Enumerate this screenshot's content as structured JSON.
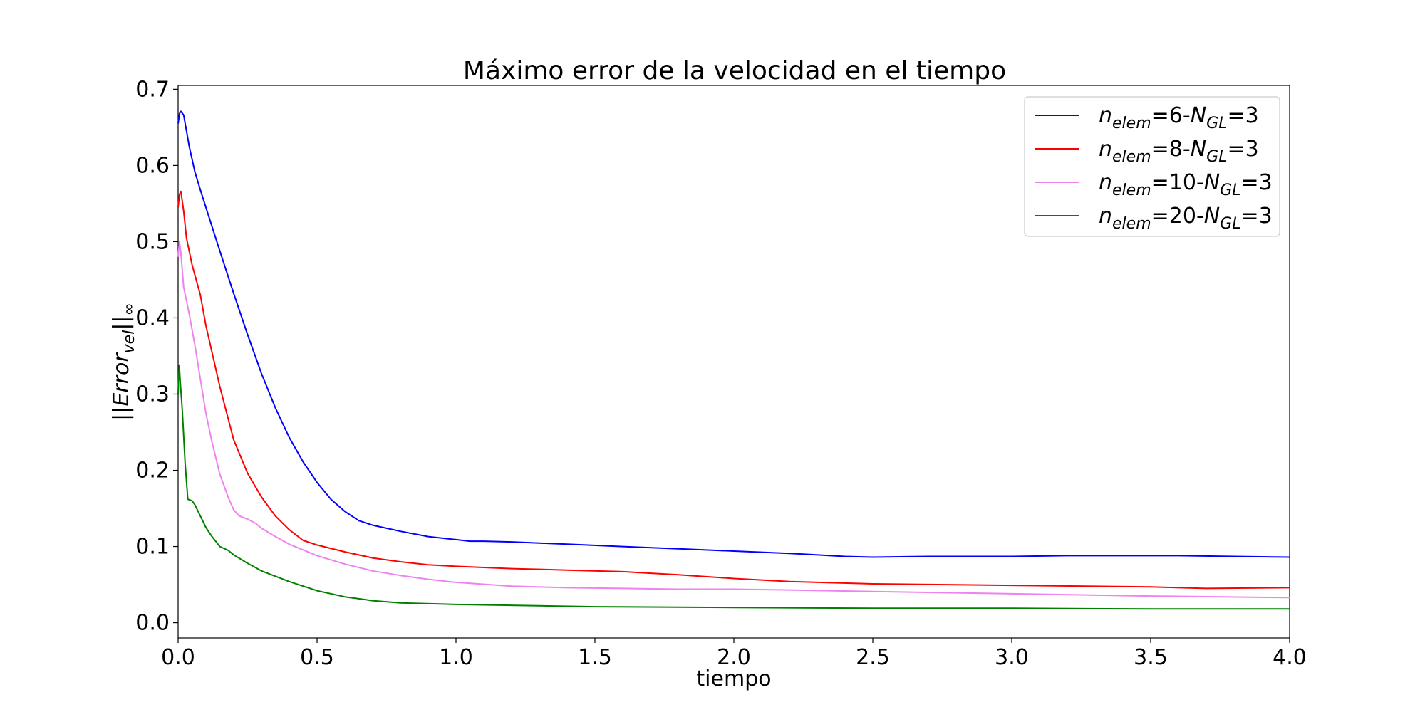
{
  "chart_data": {
    "type": "line",
    "title": "Máximo error de la velocidad en el tiempo",
    "xlabel": "tiempo",
    "ylabel": {
      "main": "||Error",
      "sub": "vel",
      "suffix": "||",
      "sub2": "∞"
    },
    "xlim": [
      0.0,
      4.0
    ],
    "ylim": [
      -0.02,
      0.705
    ],
    "xticks": [
      0.0,
      0.5,
      1.0,
      1.5,
      2.0,
      2.5,
      3.0,
      3.5,
      4.0
    ],
    "xtick_labels": [
      "0.0",
      "0.5",
      "1.0",
      "1.5",
      "2.0",
      "2.5",
      "3.0",
      "3.5",
      "4.0"
    ],
    "yticks": [
      0.0,
      0.1,
      0.2,
      0.3,
      0.4,
      0.5,
      0.6,
      0.7
    ],
    "ytick_labels": [
      "0.0",
      "0.1",
      "0.2",
      "0.3",
      "0.4",
      "0.5",
      "0.6",
      "0.7"
    ],
    "grid": false,
    "legend_position": "top-right",
    "series": [
      {
        "label": {
          "n": "n",
          "nsub": "elem",
          "mid": "=6-",
          "N": "N",
          "Nsub": "GL",
          "end": "=3"
        },
        "color": "#0000ff",
        "x": [
          0.0,
          0.005,
          0.01,
          0.02,
          0.04,
          0.06,
          0.08,
          0.1,
          0.15,
          0.2,
          0.25,
          0.3,
          0.35,
          0.4,
          0.45,
          0.5,
          0.55,
          0.6,
          0.65,
          0.7,
          0.75,
          0.8,
          0.9,
          1.0,
          1.05,
          1.1,
          1.2,
          1.4,
          1.6,
          1.8,
          2.0,
          2.2,
          2.4,
          2.5,
          2.7,
          2.9,
          3.0,
          3.2,
          3.4,
          3.6,
          3.8,
          4.0
        ],
        "y": [
          0.655,
          0.668,
          0.671,
          0.666,
          0.625,
          0.592,
          0.568,
          0.545,
          0.488,
          0.432,
          0.378,
          0.327,
          0.282,
          0.243,
          0.211,
          0.184,
          0.162,
          0.146,
          0.134,
          0.128,
          0.124,
          0.12,
          0.113,
          0.109,
          0.107,
          0.107,
          0.106,
          0.103,
          0.1,
          0.097,
          0.094,
          0.091,
          0.087,
          0.086,
          0.087,
          0.087,
          0.087,
          0.088,
          0.088,
          0.088,
          0.087,
          0.086
        ]
      },
      {
        "label": {
          "n": "n",
          "nsub": "elem",
          "mid": "=8-",
          "N": "N",
          "Nsub": "GL",
          "end": "=3"
        },
        "color": "#ff0000",
        "x": [
          0.0,
          0.005,
          0.01,
          0.02,
          0.03,
          0.05,
          0.08,
          0.1,
          0.15,
          0.2,
          0.25,
          0.3,
          0.35,
          0.4,
          0.45,
          0.5,
          0.6,
          0.7,
          0.8,
          0.9,
          1.0,
          1.2,
          1.4,
          1.6,
          1.8,
          2.0,
          2.2,
          2.5,
          3.0,
          3.5,
          3.7,
          4.0
        ],
        "y": [
          0.545,
          0.562,
          0.566,
          0.54,
          0.505,
          0.47,
          0.43,
          0.39,
          0.31,
          0.24,
          0.196,
          0.165,
          0.14,
          0.122,
          0.108,
          0.102,
          0.093,
          0.085,
          0.08,
          0.076,
          0.074,
          0.071,
          0.069,
          0.067,
          0.063,
          0.058,
          0.054,
          0.051,
          0.049,
          0.047,
          0.045,
          0.046
        ]
      },
      {
        "label": {
          "n": "n",
          "nsub": "elem",
          "mid": "=10-",
          "N": "N",
          "Nsub": "GL",
          "end": "=3"
        },
        "color": "#ee82ee",
        "x": [
          0.0,
          0.005,
          0.01,
          0.02,
          0.04,
          0.06,
          0.08,
          0.1,
          0.12,
          0.15,
          0.18,
          0.2,
          0.22,
          0.25,
          0.28,
          0.3,
          0.35,
          0.4,
          0.5,
          0.6,
          0.7,
          0.8,
          0.9,
          1.0,
          1.2,
          1.4,
          1.6,
          1.8,
          2.0,
          2.2,
          2.5,
          3.0,
          3.5,
          4.0
        ],
        "y": [
          0.48,
          0.5,
          0.485,
          0.44,
          0.405,
          0.365,
          0.32,
          0.275,
          0.24,
          0.195,
          0.165,
          0.148,
          0.14,
          0.136,
          0.13,
          0.124,
          0.113,
          0.103,
          0.088,
          0.077,
          0.068,
          0.062,
          0.057,
          0.053,
          0.048,
          0.046,
          0.045,
          0.044,
          0.044,
          0.043,
          0.041,
          0.038,
          0.035,
          0.033
        ]
      },
      {
        "label": {
          "n": "n",
          "nsub": "elem",
          "mid": "=20-",
          "N": "N",
          "Nsub": "GL",
          "end": "=3"
        },
        "color": "#008000",
        "x": [
          0.0,
          0.004,
          0.008,
          0.015,
          0.025,
          0.035,
          0.05,
          0.06,
          0.08,
          0.1,
          0.12,
          0.15,
          0.18,
          0.2,
          0.25,
          0.3,
          0.4,
          0.5,
          0.6,
          0.7,
          0.8,
          1.0,
          1.5,
          2.0,
          2.5,
          3.0,
          3.5,
          4.0
        ],
        "y": [
          0.3,
          0.338,
          0.315,
          0.28,
          0.21,
          0.162,
          0.16,
          0.155,
          0.14,
          0.125,
          0.114,
          0.1,
          0.095,
          0.089,
          0.078,
          0.068,
          0.054,
          0.042,
          0.034,
          0.029,
          0.026,
          0.024,
          0.021,
          0.02,
          0.019,
          0.019,
          0.018,
          0.018
        ]
      }
    ]
  }
}
